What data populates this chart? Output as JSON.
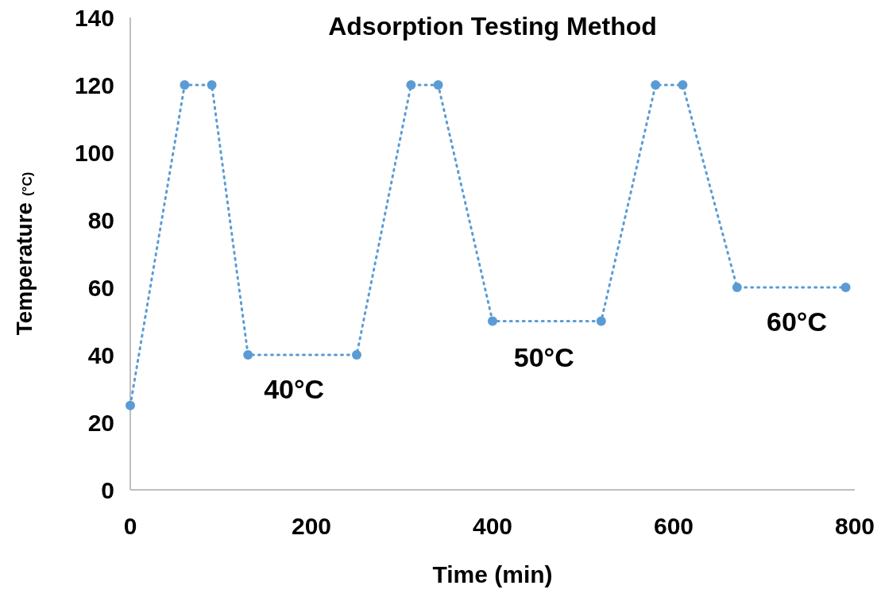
{
  "chart_data": {
    "type": "line",
    "title": "Adsorption Testing Method",
    "xlabel": "Time (min)",
    "ylabel": "Temperature (°C)",
    "x": [
      0,
      60,
      90,
      130,
      250,
      310,
      340,
      400,
      520,
      580,
      610,
      670,
      790
    ],
    "series": [
      {
        "color": "#5b9bd5",
        "values": [
          25,
          120,
          120,
          40,
          40,
          120,
          120,
          50,
          50,
          120,
          120,
          60,
          60
        ]
      }
    ],
    "xlim": [
      0,
      800
    ],
    "xticks": [
      0,
      200,
      400,
      600,
      800
    ],
    "ylim": [
      0,
      140
    ],
    "yticks": [
      0,
      20,
      40,
      60,
      80,
      100,
      120,
      140
    ],
    "grid": false,
    "marker": "circle",
    "line_style": "dotted",
    "annotations": [
      "40°C",
      "50°C",
      "60°C"
    ]
  }
}
